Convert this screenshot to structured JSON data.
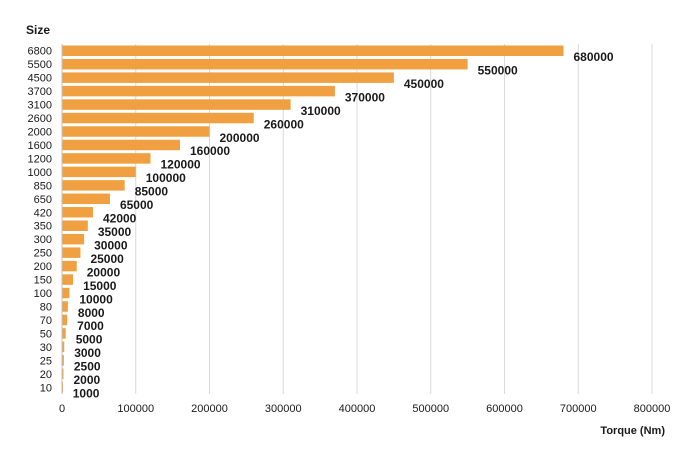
{
  "chart_data": {
    "type": "bar",
    "orientation": "horizontal",
    "ylabel": "Size",
    "xlabel": "Torque (Nm)",
    "categories": [
      "6800",
      "5500",
      "4500",
      "3700",
      "3100",
      "2600",
      "2000",
      "1600",
      "1200",
      "1000",
      "850",
      "650",
      "420",
      "350",
      "300",
      "250",
      "200",
      "150",
      "100",
      "80",
      "70",
      "50",
      "30",
      "25",
      "20",
      "10"
    ],
    "values": [
      680000,
      550000,
      450000,
      370000,
      310000,
      260000,
      200000,
      160000,
      120000,
      100000,
      85000,
      65000,
      42000,
      35000,
      30000,
      25000,
      20000,
      15000,
      10000,
      8000,
      7000,
      5000,
      3000,
      2500,
      2000,
      1000
    ],
    "xlim": [
      0,
      800000
    ],
    "xticks": [
      0,
      100000,
      200000,
      300000,
      400000,
      500000,
      600000,
      700000,
      800000
    ],
    "grid": true,
    "bar_color": "#f0a040",
    "grid_color": "#d9d9d9",
    "data_labels": true
  }
}
